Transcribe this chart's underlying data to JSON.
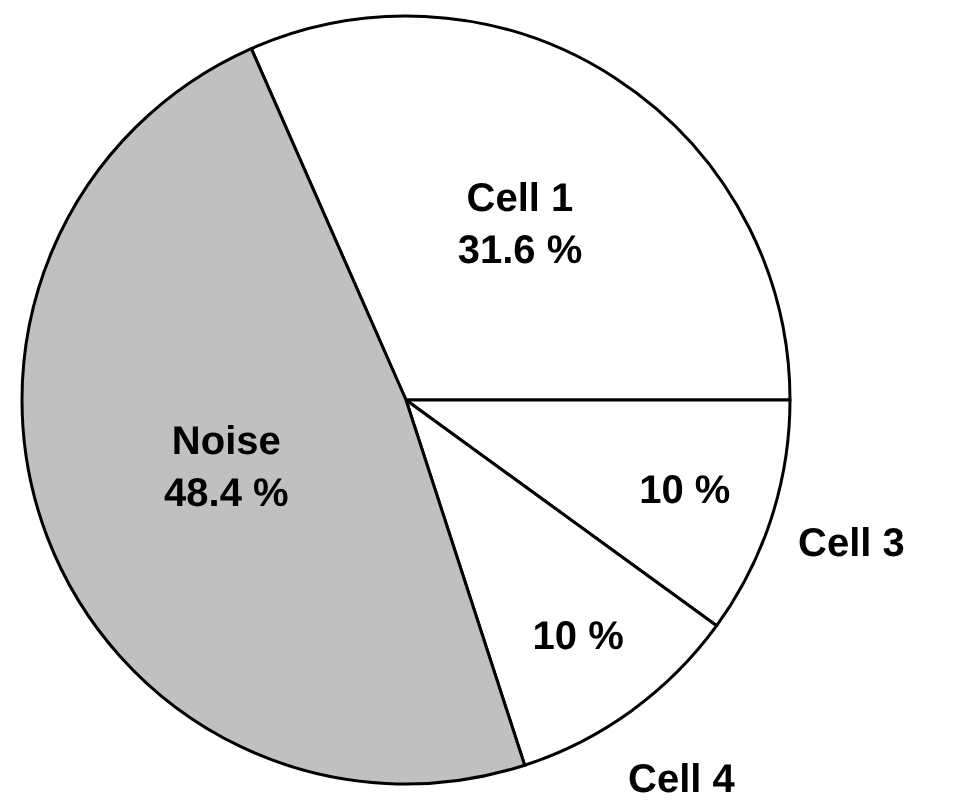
{
  "chart_data": {
    "type": "pie",
    "categories": [
      "Cell 1",
      "Cell 3",
      "Cell 4",
      "Noise"
    ],
    "values": [
      31.6,
      10,
      10,
      48.4
    ],
    "value_labels": [
      "31.6 %",
      "10 %",
      "10 %",
      "48.4 %"
    ],
    "colors": [
      "#ffffff",
      "#ffffff",
      "#ffffff",
      "#c0c0c0"
    ]
  }
}
